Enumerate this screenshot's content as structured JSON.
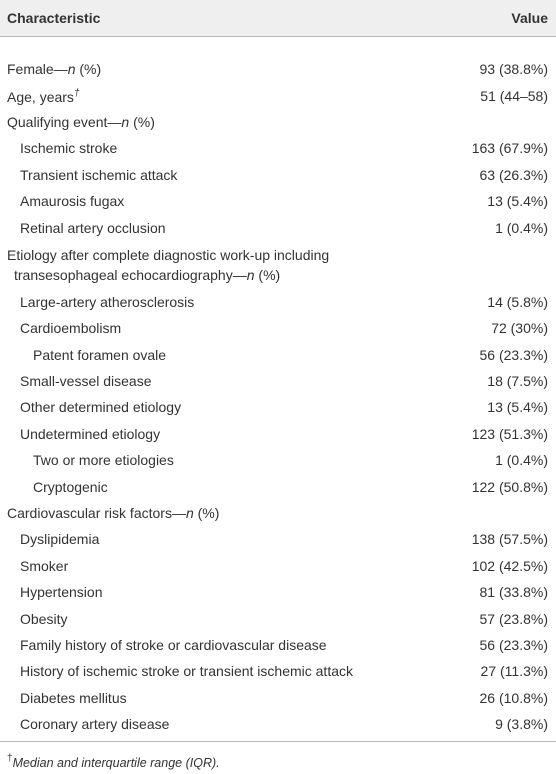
{
  "table": {
    "columns": [
      "Characteristic",
      "Value"
    ],
    "rows": [
      {
        "label": [
          {
            "text": "Female—"
          },
          {
            "text": "n",
            "style": "italic"
          },
          {
            "text": " (%)"
          }
        ],
        "value": "93 (38.8%)"
      },
      {
        "label": [
          {
            "text": "Age, years"
          },
          {
            "text": "†",
            "style": "sup-italic"
          }
        ],
        "value": "51 (44–58)"
      },
      {
        "label": [
          {
            "text": "Qualifying event—"
          },
          {
            "text": "n",
            "style": "italic"
          },
          {
            "text": " (%)"
          }
        ],
        "children": [
          {
            "label": [
              {
                "text": "Ischemic stroke"
              }
            ],
            "value": "163 (67.9%)"
          },
          {
            "label": [
              {
                "text": "Transient ischemic attack"
              }
            ],
            "value": "63 (26.3%)"
          },
          {
            "label": [
              {
                "text": "Amaurosis fugax"
              }
            ],
            "value": "13 (5.4%)"
          },
          {
            "label": [
              {
                "text": "Retinal artery occlusion"
              }
            ],
            "value": "1 (0.4%)"
          }
        ]
      },
      {
        "label": [
          {
            "text": "Etiology after complete diagnostic work-up including transesophageal echocardiography—"
          },
          {
            "text": "n",
            "style": "italic"
          },
          {
            "text": " (%)"
          }
        ],
        "children": [
          {
            "label": [
              {
                "text": "Large-artery atherosclerosis"
              }
            ],
            "value": "14 (5.8%)"
          },
          {
            "label": [
              {
                "text": "Cardioembolism"
              }
            ],
            "value": "72 (30%)",
            "children": [
              {
                "label": [
                  {
                    "text": "Patent foramen ovale"
                  }
                ],
                "value": "56 (23.3%)"
              }
            ]
          },
          {
            "label": [
              {
                "text": "Small-vessel disease"
              }
            ],
            "value": "18 (7.5%)"
          },
          {
            "label": [
              {
                "text": "Other determined etiology"
              }
            ],
            "value": "13 (5.4%)"
          },
          {
            "label": [
              {
                "text": "Undetermined etiology"
              }
            ],
            "value": "123 (51.3%)",
            "children": [
              {
                "label": [
                  {
                    "text": "Two or more etiologies"
                  }
                ],
                "value": "1 (0.4%)"
              },
              {
                "label": [
                  {
                    "text": "Cryptogenic"
                  }
                ],
                "value": "122 (50.8%)"
              }
            ]
          }
        ]
      },
      {
        "label": [
          {
            "text": "Cardiovascular risk factors—"
          },
          {
            "text": "n",
            "style": "italic"
          },
          {
            "text": " (%)"
          }
        ],
        "children": [
          {
            "label": [
              {
                "text": "Dyslipidemia"
              }
            ],
            "value": "138 (57.5%)"
          },
          {
            "label": [
              {
                "text": "Smoker"
              }
            ],
            "value": "102 (42.5%)"
          },
          {
            "label": [
              {
                "text": "Hypertension"
              }
            ],
            "value": "81 (33.8%)"
          },
          {
            "label": [
              {
                "text": "Obesity"
              }
            ],
            "value": "57 (23.8%)"
          },
          {
            "label": [
              {
                "text": "Family history of stroke or cardiovascular disease"
              }
            ],
            "value": "56 (23.3%)"
          },
          {
            "label": [
              {
                "text": "History of ischemic stroke or transient ischemic attack"
              }
            ],
            "value": "27 (11.3%)"
          },
          {
            "label": [
              {
                "text": "Diabetes mellitus"
              }
            ],
            "value": "26 (10.8%)"
          },
          {
            "label": [
              {
                "text": "Coronary artery disease"
              }
            ],
            "value": "9 (3.8%)"
          }
        ]
      }
    ],
    "footnote": [
      {
        "text": "†",
        "style": "sup"
      },
      {
        "text": "Median and interquartile range (IQR).",
        "style": "italic"
      }
    ]
  }
}
